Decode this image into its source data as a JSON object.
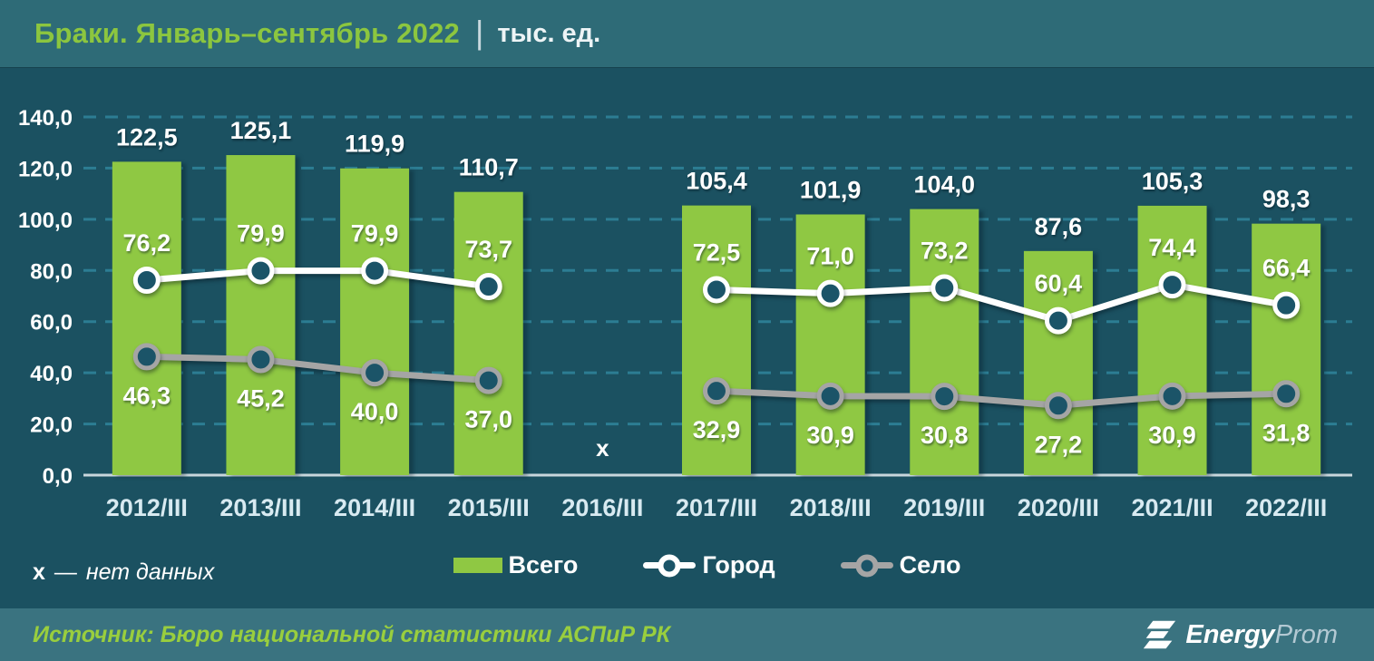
{
  "header": {
    "title": "Браки. Январь–сентябрь 2022",
    "separator": "|",
    "units": "тыс. ед."
  },
  "chart_data": {
    "type": "bar",
    "subtype": "bar-line-combo",
    "categories": [
      "2012/III",
      "2013/III",
      "2014/III",
      "2015/III",
      "2016/III",
      "2017/III",
      "2018/III",
      "2019/III",
      "2020/III",
      "2021/III",
      "2022/III"
    ],
    "series": [
      {
        "name": "Всего",
        "type": "bar",
        "color": "#8FC843",
        "values": [
          122.5,
          125.1,
          119.9,
          110.7,
          null,
          105.4,
          101.9,
          104.0,
          87.6,
          105.3,
          98.3
        ]
      },
      {
        "name": "Город",
        "type": "line",
        "color": "#FFFFFF",
        "values": [
          76.2,
          79.9,
          79.9,
          73.7,
          null,
          72.5,
          71.0,
          73.2,
          60.4,
          74.4,
          66.4
        ]
      },
      {
        "name": "Село",
        "type": "line",
        "color": "#A5A5A5",
        "values": [
          46.3,
          45.2,
          40.0,
          37.0,
          null,
          32.9,
          30.9,
          30.8,
          27.2,
          30.9,
          31.8
        ]
      }
    ],
    "marker_fill": "#1B5468",
    "missing_label": "x",
    "y_ticks": [
      0,
      20,
      40,
      60,
      80,
      100,
      120,
      140
    ],
    "ylim": [
      0,
      140
    ],
    "grid": "horizontal-dashed",
    "legend_position": "bottom-center",
    "decimal_separator": ","
  },
  "note": {
    "marker": "х",
    "sep": "—",
    "text": "нет данных"
  },
  "footer": {
    "source": "Источник: Бюро национальной статистики АСПиР РК",
    "logo": {
      "energy": "Energy",
      "prom": "Prom"
    }
  },
  "colors": {
    "header_bg": "#2E6B77",
    "chart_bg": "#1B5161",
    "footer_bg": "#3A7380",
    "title_green": "#8CC63F",
    "bar_green": "#8FC843",
    "gridline": "#2C7D93",
    "axis_line": "#C8D6DC",
    "x_label": "#D8EAF1",
    "source_green": "#99CE3E",
    "logo_prom": "#B3C9D3"
  }
}
